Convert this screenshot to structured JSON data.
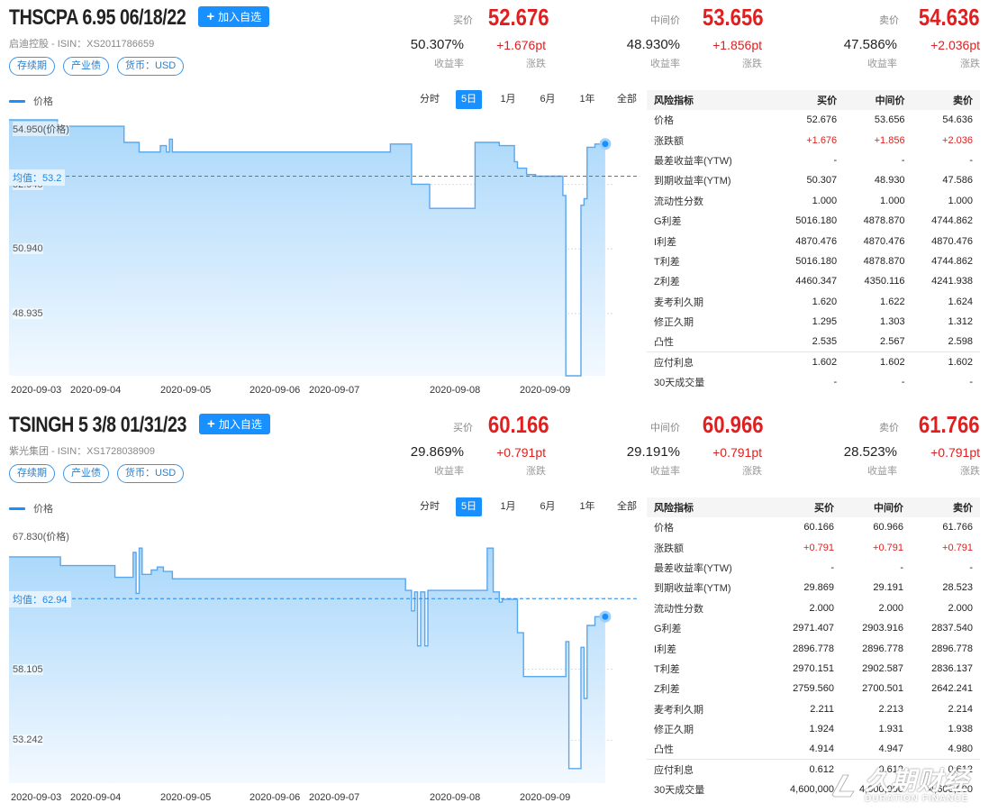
{
  "common": {
    "add_watch": "加入自选",
    "legend_label": "价格",
    "periods": [
      "分时",
      "5日",
      "1月",
      "6月",
      "1年",
      "全部"
    ],
    "active_period": "5日",
    "tags": [
      "存续期",
      "产业债",
      "货币：USD"
    ],
    "quote_labels": {
      "bid": "买价",
      "mid": "中间价",
      "ask": "卖价",
      "yield": "收益率",
      "change": "涨跌"
    },
    "table_headers": [
      "风险指标",
      "买价",
      "中间价",
      "卖价"
    ]
  },
  "panels": [
    {
      "title": "THSCPA 6.95 06/18/22",
      "subtitle": "启迪控股 - ISIN：XS2011786659",
      "quotes": {
        "bid": {
          "price": "52.676",
          "yield": "50.307%",
          "change": "+1.676pt"
        },
        "mid": {
          "price": "53.656",
          "yield": "48.930%",
          "change": "+1.856pt"
        },
        "ask": {
          "price": "54.636",
          "yield": "47.586%",
          "change": "+2.036pt"
        }
      },
      "chart_data": {
        "type": "line",
        "series": [
          {
            "name": "价格",
            "color": "#5aa7ec"
          }
        ],
        "x_ticks": [
          "2020-09-03",
          "2020-09-04",
          "2020-09-05",
          "2020-09-06",
          "2020-09-07",
          "2020-09-08",
          "2020-09-09"
        ],
        "y_ticks": [
          "54.950(价格)",
          "52.945",
          "50.940",
          "48.935"
        ],
        "y_tick_values": [
          54.95,
          52.945,
          50.94,
          48.935
        ],
        "ylim": [
          47.0,
          54.95
        ],
        "average_label": "均值：53.2",
        "average": 53.2,
        "points": [
          [
            0,
            54.95
          ],
          [
            0.08,
            54.95
          ],
          [
            0.08,
            54.75
          ],
          [
            0.19,
            54.75
          ],
          [
            0.19,
            54.25
          ],
          [
            0.215,
            54.25
          ],
          [
            0.215,
            53.95
          ],
          [
            0.25,
            53.95
          ],
          [
            0.25,
            54.15
          ],
          [
            0.26,
            54.15
          ],
          [
            0.26,
            53.95
          ],
          [
            0.265,
            53.95
          ],
          [
            0.265,
            54.35
          ],
          [
            0.27,
            54.35
          ],
          [
            0.27,
            53.95
          ],
          [
            0.63,
            53.95
          ],
          [
            0.63,
            54.2
          ],
          [
            0.665,
            54.2
          ],
          [
            0.665,
            52.95
          ],
          [
            0.695,
            52.95
          ],
          [
            0.695,
            52.2
          ],
          [
            0.77,
            52.2
          ],
          [
            0.77,
            54.25
          ],
          [
            0.81,
            54.25
          ],
          [
            0.81,
            54.15
          ],
          [
            0.835,
            54.15
          ],
          [
            0.835,
            53.65
          ],
          [
            0.84,
            53.65
          ],
          [
            0.84,
            53.45
          ],
          [
            0.855,
            53.45
          ],
          [
            0.855,
            53.25
          ],
          [
            0.87,
            53.25
          ],
          [
            0.87,
            53.2
          ],
          [
            0.915,
            53.2
          ],
          [
            0.915,
            52.6
          ],
          [
            0.92,
            52.6
          ],
          [
            0.92,
            47.0
          ],
          [
            0.945,
            47.0
          ],
          [
            0.945,
            52.3
          ],
          [
            0.95,
            52.3
          ],
          [
            0.95,
            52.5
          ],
          [
            0.955,
            52.5
          ],
          [
            0.955,
            54.1
          ],
          [
            0.968,
            54.1
          ],
          [
            0.968,
            54.2
          ],
          [
            0.985,
            54.2
          ]
        ]
      },
      "risk_rows": [
        {
          "label": "价格",
          "bid": "52.676",
          "mid": "53.656",
          "ask": "54.636"
        },
        {
          "label": "涨跌额",
          "bid": "+1.676",
          "mid": "+1.856",
          "ask": "+2.036",
          "red": true
        },
        {
          "label": "最差收益率(YTW)",
          "bid": "-",
          "mid": "-",
          "ask": "-"
        },
        {
          "label": "到期收益率(YTM)",
          "bid": "50.307",
          "mid": "48.930",
          "ask": "47.586"
        },
        {
          "label": "流动性分数",
          "bid": "1.000",
          "mid": "1.000",
          "ask": "1.000"
        },
        {
          "label": "G利差",
          "bid": "5016.180",
          "mid": "4878.870",
          "ask": "4744.862"
        },
        {
          "label": "I利差",
          "bid": "4870.476",
          "mid": "4870.476",
          "ask": "4870.476"
        },
        {
          "label": "T利差",
          "bid": "5016.180",
          "mid": "4878.870",
          "ask": "4744.862"
        },
        {
          "label": "Z利差",
          "bid": "4460.347",
          "mid": "4350.116",
          "ask": "4241.938"
        },
        {
          "label": "麦考利久期",
          "bid": "1.620",
          "mid": "1.622",
          "ask": "1.624"
        },
        {
          "label": "修正久期",
          "bid": "1.295",
          "mid": "1.303",
          "ask": "1.312"
        },
        {
          "label": "凸性",
          "bid": "2.535",
          "mid": "2.567",
          "ask": "2.598"
        },
        {
          "label": "应付利息",
          "bid": "1.602",
          "mid": "1.602",
          "ask": "1.602",
          "sep": true
        },
        {
          "label": "30天成交量",
          "bid": "-",
          "mid": "-",
          "ask": "-"
        }
      ]
    },
    {
      "title": "TSINGH 5 3/8 01/31/23",
      "subtitle": "紫光集团 - ISIN：XS1728038909",
      "quotes": {
        "bid": {
          "price": "60.166",
          "yield": "29.869%",
          "change": "+0.791pt"
        },
        "mid": {
          "price": "60.966",
          "yield": "29.191%",
          "change": "+0.791pt"
        },
        "ask": {
          "price": "61.766",
          "yield": "28.523%",
          "change": "+0.791pt"
        }
      },
      "chart_data": {
        "type": "line",
        "series": [
          {
            "name": "价格",
            "color": "#5aa7ec"
          }
        ],
        "x_ticks": [
          "2020-09-03",
          "2020-09-04",
          "2020-09-05",
          "2020-09-06",
          "2020-09-07",
          "2020-09-08",
          "2020-09-09"
        ],
        "y_ticks": [
          "67.830(价格)",
          "62.968",
          "58.105",
          "53.242"
        ],
        "y_tick_values": [
          67.83,
          62.968,
          58.105,
          53.242
        ],
        "ylim": [
          50.3,
          67.83
        ],
        "average_label": "均值：62.94",
        "average": 62.94,
        "points": [
          [
            0,
            65.8
          ],
          [
            0.085,
            65.8
          ],
          [
            0.085,
            65.2
          ],
          [
            0.175,
            65.2
          ],
          [
            0.175,
            64.4
          ],
          [
            0.205,
            64.4
          ],
          [
            0.205,
            66.1
          ],
          [
            0.21,
            66.1
          ],
          [
            0.21,
            63.3
          ],
          [
            0.215,
            63.3
          ],
          [
            0.215,
            66.4
          ],
          [
            0.22,
            66.4
          ],
          [
            0.22,
            64.6
          ],
          [
            0.235,
            64.6
          ],
          [
            0.235,
            64.9
          ],
          [
            0.245,
            64.9
          ],
          [
            0.245,
            65.1
          ],
          [
            0.255,
            65.1
          ],
          [
            0.255,
            64.8
          ],
          [
            0.27,
            64.8
          ],
          [
            0.27,
            64.3
          ],
          [
            0.655,
            64.3
          ],
          [
            0.655,
            63.5
          ],
          [
            0.665,
            63.5
          ],
          [
            0.665,
            62.1
          ],
          [
            0.67,
            62.1
          ],
          [
            0.67,
            63.4
          ],
          [
            0.675,
            63.4
          ],
          [
            0.675,
            59.7
          ],
          [
            0.68,
            59.7
          ],
          [
            0.68,
            63.4
          ],
          [
            0.687,
            63.4
          ],
          [
            0.687,
            59.7
          ],
          [
            0.692,
            59.7
          ],
          [
            0.692,
            63.5
          ],
          [
            0.79,
            63.5
          ],
          [
            0.79,
            66.4
          ],
          [
            0.8,
            66.4
          ],
          [
            0.8,
            63.4
          ],
          [
            0.81,
            63.4
          ],
          [
            0.81,
            62.7
          ],
          [
            0.815,
            62.7
          ],
          [
            0.815,
            62.9
          ],
          [
            0.84,
            62.9
          ],
          [
            0.84,
            60.6
          ],
          [
            0.85,
            60.6
          ],
          [
            0.85,
            57.6
          ],
          [
            0.92,
            57.6
          ],
          [
            0.92,
            60.0
          ],
          [
            0.925,
            60.0
          ],
          [
            0.925,
            51.3
          ],
          [
            0.945,
            51.3
          ],
          [
            0.945,
            59.6
          ],
          [
            0.95,
            59.6
          ],
          [
            0.95,
            56.1
          ],
          [
            0.955,
            56.1
          ],
          [
            0.955,
            61.1
          ],
          [
            0.968,
            61.1
          ],
          [
            0.968,
            61.7
          ],
          [
            0.985,
            61.7
          ]
        ]
      },
      "risk_rows": [
        {
          "label": "价格",
          "bid": "60.166",
          "mid": "60.966",
          "ask": "61.766"
        },
        {
          "label": "涨跌额",
          "bid": "+0.791",
          "mid": "+0.791",
          "ask": "+0.791",
          "red": true
        },
        {
          "label": "最差收益率(YTW)",
          "bid": "-",
          "mid": "-",
          "ask": "-"
        },
        {
          "label": "到期收益率(YTM)",
          "bid": "29.869",
          "mid": "29.191",
          "ask": "28.523"
        },
        {
          "label": "流动性分数",
          "bid": "2.000",
          "mid": "2.000",
          "ask": "2.000"
        },
        {
          "label": "G利差",
          "bid": "2971.407",
          "mid": "2903.916",
          "ask": "2837.540"
        },
        {
          "label": "I利差",
          "bid": "2896.778",
          "mid": "2896.778",
          "ask": "2896.778"
        },
        {
          "label": "T利差",
          "bid": "2970.151",
          "mid": "2902.587",
          "ask": "2836.137"
        },
        {
          "label": "Z利差",
          "bid": "2759.560",
          "mid": "2700.501",
          "ask": "2642.241"
        },
        {
          "label": "麦考利久期",
          "bid": "2.211",
          "mid": "2.213",
          "ask": "2.214"
        },
        {
          "label": "修正久期",
          "bid": "1.924",
          "mid": "1.931",
          "ask": "1.938"
        },
        {
          "label": "凸性",
          "bid": "4.914",
          "mid": "4.947",
          "ask": "4.980"
        },
        {
          "label": "应付利息",
          "bid": "0.612",
          "mid": "0.612",
          "ask": "0.612",
          "sep": true
        },
        {
          "label": "30天成交量",
          "bid": "4,600,000",
          "mid": "4,600,000",
          "ask": "4,600,000"
        }
      ]
    }
  ],
  "watermark": {
    "cn": "久期财经",
    "en": "DURATION FINANCE"
  }
}
